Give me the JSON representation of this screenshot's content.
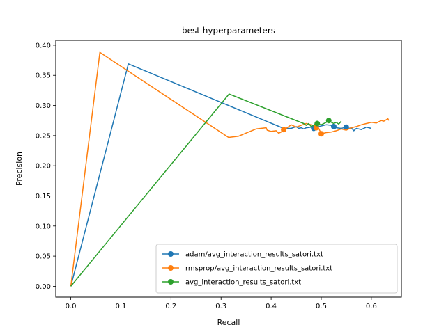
{
  "chart_data": {
    "type": "line",
    "title": "best hyperparameters",
    "xlabel": "Recall",
    "ylabel": "Precision",
    "xlim": [
      -0.03,
      0.66
    ],
    "ylim": [
      -0.018,
      0.408
    ],
    "xticks": [
      0.0,
      0.1,
      0.2,
      0.3,
      0.4,
      0.5,
      0.6
    ],
    "xtick_labels": [
      "0.0",
      "0.1",
      "0.2",
      "0.3",
      "0.4",
      "0.5",
      "0.6"
    ],
    "yticks": [
      0.0,
      0.05,
      0.1,
      0.15,
      0.2,
      0.25,
      0.3,
      0.35,
      0.4
    ],
    "ytick_labels": [
      "0.00",
      "0.05",
      "0.10",
      "0.15",
      "0.20",
      "0.25",
      "0.30",
      "0.35",
      "0.40"
    ],
    "grid": false,
    "legend_position": "lower-right",
    "series": [
      {
        "name": "adam/avg_interaction_results_satori.txt",
        "color": "#1f77b4",
        "x": [
          0.0,
          0.115,
          0.425,
          0.44,
          0.45,
          0.455,
          0.46,
          0.465,
          0.47,
          0.48,
          0.485,
          0.49,
          0.5,
          0.51,
          0.52,
          0.525,
          0.53,
          0.54,
          0.55,
          0.555,
          0.56,
          0.565,
          0.57,
          0.58,
          0.59,
          0.6
        ],
        "y": [
          0.0,
          0.369,
          0.262,
          0.262,
          0.265,
          0.262,
          0.263,
          0.261,
          0.263,
          0.264,
          0.262,
          0.264,
          0.266,
          0.268,
          0.267,
          0.265,
          0.263,
          0.262,
          0.264,
          0.262,
          0.263,
          0.258,
          0.262,
          0.26,
          0.264,
          0.262
        ],
        "markers": [
          [
            0.485,
            0.262
          ],
          [
            0.525,
            0.265
          ],
          [
            0.55,
            0.264
          ]
        ]
      },
      {
        "name": "rmsprop/avg_interaction_results_satori.txt",
        "color": "#ff7f0e",
        "x": [
          0.0,
          0.058,
          0.315,
          0.335,
          0.355,
          0.37,
          0.39,
          0.392,
          0.4,
          0.41,
          0.415,
          0.42,
          0.425,
          0.43,
          0.44,
          0.45,
          0.46,
          0.47,
          0.48,
          0.49,
          0.495,
          0.5,
          0.51,
          0.52,
          0.53,
          0.54,
          0.55,
          0.56,
          0.57,
          0.58,
          0.59,
          0.6,
          0.61,
          0.62,
          0.625,
          0.633,
          0.635
        ],
        "y": [
          0.0,
          0.388,
          0.247,
          0.249,
          0.256,
          0.261,
          0.263,
          0.259,
          0.257,
          0.258,
          0.254,
          0.256,
          0.26,
          0.262,
          0.268,
          0.264,
          0.267,
          0.27,
          0.268,
          0.266,
          0.262,
          0.253,
          0.255,
          0.256,
          0.258,
          0.261,
          0.259,
          0.263,
          0.265,
          0.268,
          0.27,
          0.272,
          0.271,
          0.275,
          0.274,
          0.278,
          0.275
        ],
        "markers": [
          [
            0.425,
            0.26
          ],
          [
            0.49,
            0.263
          ],
          [
            0.5,
            0.253
          ]
        ]
      },
      {
        "name": "avg_interaction_results_satori.txt",
        "color": "#2ca02c",
        "x": [
          0.0,
          0.316,
          0.465,
          0.47,
          0.475,
          0.48,
          0.49,
          0.5,
          0.51,
          0.515,
          0.52,
          0.525,
          0.53,
          0.535,
          0.54
        ],
        "y": [
          0.0,
          0.319,
          0.27,
          0.267,
          0.27,
          0.265,
          0.27,
          0.268,
          0.272,
          0.275,
          0.272,
          0.27,
          0.272,
          0.269,
          0.274
        ],
        "markers": [
          [
            0.492,
            0.27
          ],
          [
            0.515,
            0.275
          ]
        ]
      }
    ]
  }
}
